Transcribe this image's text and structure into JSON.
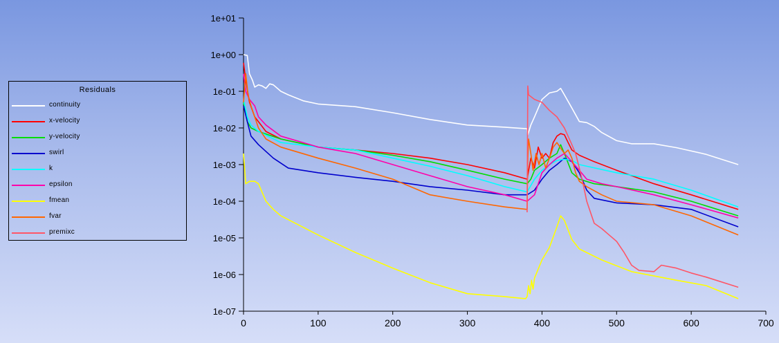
{
  "chart_data": {
    "type": "line",
    "title": "",
    "legend": {
      "title": "Residuals",
      "placement": "left"
    },
    "xlabel": "",
    "ylabel": "",
    "xlim": [
      0,
      700
    ],
    "ylim": [
      1e-07,
      10
    ],
    "yscale": "log",
    "x_ticks": [
      0,
      100,
      200,
      300,
      400,
      500,
      600,
      700
    ],
    "y_ticks": [
      10,
      1,
      0.1,
      0.01,
      0.001,
      0.0001,
      1e-05,
      1e-06,
      1e-07
    ],
    "y_tick_labels": [
      "1e+01",
      "1e+00",
      "1e-01",
      "1e-02",
      "1e-03",
      "1e-04",
      "1e-05",
      "1e-06",
      "1e-07"
    ],
    "series": [
      {
        "name": "continuity",
        "color": "#ffffff",
        "points": [
          [
            0,
            1.0
          ],
          [
            5,
            0.95
          ],
          [
            8,
            0.3
          ],
          [
            12,
            0.2
          ],
          [
            15,
            0.13
          ],
          [
            20,
            0.15
          ],
          [
            25,
            0.14
          ],
          [
            30,
            0.12
          ],
          [
            35,
            0.16
          ],
          [
            40,
            0.15
          ],
          [
            50,
            0.1
          ],
          [
            60,
            0.08
          ],
          [
            80,
            0.055
          ],
          [
            100,
            0.045
          ],
          [
            150,
            0.038
          ],
          [
            200,
            0.026
          ],
          [
            250,
            0.017
          ],
          [
            300,
            0.012
          ],
          [
            350,
            0.0105
          ],
          [
            380,
            0.0095
          ],
          [
            381,
            0.0065
          ],
          [
            385,
            0.012
          ],
          [
            390,
            0.02
          ],
          [
            400,
            0.06
          ],
          [
            410,
            0.09
          ],
          [
            420,
            0.1
          ],
          [
            425,
            0.12
          ],
          [
            430,
            0.08
          ],
          [
            440,
            0.035
          ],
          [
            450,
            0.015
          ],
          [
            460,
            0.014
          ],
          [
            470,
            0.011
          ],
          [
            480,
            0.0075
          ],
          [
            500,
            0.0045
          ],
          [
            520,
            0.0037
          ],
          [
            550,
            0.0037
          ],
          [
            580,
            0.0029
          ],
          [
            620,
            0.0019
          ],
          [
            663,
            0.001
          ]
        ]
      },
      {
        "name": "x-velocity",
        "color": "#ff0000",
        "points": [
          [
            0,
            0.6
          ],
          [
            3,
            0.2
          ],
          [
            8,
            0.05
          ],
          [
            15,
            0.02
          ],
          [
            30,
            0.008
          ],
          [
            50,
            0.005
          ],
          [
            100,
            0.003
          ],
          [
            150,
            0.0025
          ],
          [
            200,
            0.002
          ],
          [
            250,
            0.0015
          ],
          [
            300,
            0.001
          ],
          [
            350,
            0.0006
          ],
          [
            380,
            0.0004
          ],
          [
            385,
            0.0015
          ],
          [
            390,
            0.0008
          ],
          [
            395,
            0.003
          ],
          [
            400,
            0.0015
          ],
          [
            405,
            0.002
          ],
          [
            410,
            0.0015
          ],
          [
            415,
            0.004
          ],
          [
            420,
            0.006
          ],
          [
            425,
            0.007
          ],
          [
            430,
            0.0065
          ],
          [
            435,
            0.004
          ],
          [
            440,
            0.0025
          ],
          [
            450,
            0.0018
          ],
          [
            470,
            0.0012
          ],
          [
            500,
            0.0007
          ],
          [
            550,
            0.0003
          ],
          [
            600,
            0.00015
          ],
          [
            663,
            6e-05
          ]
        ]
      },
      {
        "name": "y-velocity",
        "color": "#00dd00",
        "points": [
          [
            0,
            0.05
          ],
          [
            5,
            0.015
          ],
          [
            10,
            0.01
          ],
          [
            20,
            0.008
          ],
          [
            50,
            0.005
          ],
          [
            100,
            0.003
          ],
          [
            150,
            0.0025
          ],
          [
            200,
            0.0018
          ],
          [
            250,
            0.0012
          ],
          [
            300,
            0.0007
          ],
          [
            350,
            0.0004
          ],
          [
            380,
            0.0003
          ],
          [
            385,
            0.0004
          ],
          [
            390,
            0.0007
          ],
          [
            400,
            0.001
          ],
          [
            410,
            0.0015
          ],
          [
            420,
            0.002
          ],
          [
            425,
            0.0035
          ],
          [
            430,
            0.002
          ],
          [
            440,
            0.0006
          ],
          [
            450,
            0.0004
          ],
          [
            470,
            0.0003
          ],
          [
            500,
            0.00025
          ],
          [
            550,
            0.00018
          ],
          [
            600,
            0.0001
          ],
          [
            663,
            4e-05
          ]
        ]
      },
      {
        "name": "swirl",
        "color": "#0000cc",
        "points": [
          [
            0,
            0.04
          ],
          [
            5,
            0.015
          ],
          [
            10,
            0.006
          ],
          [
            20,
            0.0035
          ],
          [
            40,
            0.0015
          ],
          [
            60,
            0.0008
          ],
          [
            100,
            0.0006
          ],
          [
            150,
            0.00045
          ],
          [
            200,
            0.00035
          ],
          [
            250,
            0.00025
          ],
          [
            300,
            0.0002
          ],
          [
            350,
            0.00015
          ],
          [
            380,
            0.00015
          ],
          [
            390,
            0.0002
          ],
          [
            400,
            0.0004
          ],
          [
            410,
            0.0007
          ],
          [
            420,
            0.001
          ],
          [
            430,
            0.0015
          ],
          [
            440,
            0.0012
          ],
          [
            450,
            0.0006
          ],
          [
            460,
            0.0002
          ],
          [
            470,
            0.00012
          ],
          [
            500,
            9e-05
          ],
          [
            550,
            8e-05
          ],
          [
            600,
            6e-05
          ],
          [
            663,
            2e-05
          ]
        ]
      },
      {
        "name": "k",
        "color": "#00ffff",
        "points": [
          [
            0,
            0.06
          ],
          [
            5,
            0.02
          ],
          [
            10,
            0.012
          ],
          [
            20,
            0.008
          ],
          [
            50,
            0.004
          ],
          [
            100,
            0.003
          ],
          [
            150,
            0.0025
          ],
          [
            200,
            0.0015
          ],
          [
            250,
            0.0009
          ],
          [
            300,
            0.0005
          ],
          [
            350,
            0.00025
          ],
          [
            380,
            0.00018
          ],
          [
            390,
            0.0004
          ],
          [
            400,
            0.0007
          ],
          [
            410,
            0.001
          ],
          [
            420,
            0.0013
          ],
          [
            430,
            0.0014
          ],
          [
            440,
            0.0013
          ],
          [
            450,
            0.001
          ],
          [
            500,
            0.0006
          ],
          [
            550,
            0.0004
          ],
          [
            600,
            0.0002
          ],
          [
            663,
            7e-05
          ]
        ]
      },
      {
        "name": "epsilon",
        "color": "#ff00aa",
        "points": [
          [
            0,
            0.3
          ],
          [
            3,
            0.1
          ],
          [
            8,
            0.06
          ],
          [
            15,
            0.04
          ],
          [
            20,
            0.02
          ],
          [
            30,
            0.012
          ],
          [
            50,
            0.006
          ],
          [
            100,
            0.003
          ],
          [
            150,
            0.002
          ],
          [
            200,
            0.001
          ],
          [
            250,
            0.0005
          ],
          [
            300,
            0.00025
          ],
          [
            350,
            0.00015
          ],
          [
            380,
            0.0001
          ],
          [
            390,
            0.00015
          ],
          [
            400,
            0.0006
          ],
          [
            410,
            0.001
          ],
          [
            420,
            0.0015
          ],
          [
            430,
            0.002
          ],
          [
            440,
            0.0012
          ],
          [
            450,
            0.0007
          ],
          [
            460,
            0.0004
          ],
          [
            480,
            0.0003
          ],
          [
            500,
            0.00025
          ],
          [
            550,
            0.00015
          ],
          [
            600,
            8e-05
          ],
          [
            663,
            3.5e-05
          ]
        ]
      },
      {
        "name": "fmean",
        "color": "#ffff00",
        "points": [
          [
            0,
            0.002
          ],
          [
            3,
            0.0003
          ],
          [
            8,
            0.00035
          ],
          [
            15,
            0.00035
          ],
          [
            20,
            0.0003
          ],
          [
            30,
            0.0001
          ],
          [
            40,
            6e-05
          ],
          [
            50,
            4e-05
          ],
          [
            100,
            1.2e-05
          ],
          [
            150,
            4e-06
          ],
          [
            200,
            1.5e-06
          ],
          [
            250,
            6e-07
          ],
          [
            300,
            3e-07
          ],
          [
            350,
            2.5e-07
          ],
          [
            378,
            2.2e-07
          ],
          [
            380,
            2.5e-07
          ],
          [
            382,
            5e-07
          ],
          [
            384,
            3e-07
          ],
          [
            386,
            7e-07
          ],
          [
            388,
            4e-07
          ],
          [
            390,
            8e-07
          ],
          [
            400,
            2.5e-06
          ],
          [
            410,
            5.5e-06
          ],
          [
            420,
            2e-05
          ],
          [
            425,
            4e-05
          ],
          [
            430,
            3e-05
          ],
          [
            440,
            9e-06
          ],
          [
            450,
            5e-06
          ],
          [
            480,
            2.5e-06
          ],
          [
            520,
            1.2e-06
          ],
          [
            580,
            7e-07
          ],
          [
            620,
            5e-07
          ],
          [
            663,
            2.2e-07
          ]
        ]
      },
      {
        "name": "fvar",
        "color": "#ff6600",
        "points": [
          [
            0,
            0.05
          ],
          [
            3,
            0.3
          ],
          [
            6,
            0.08
          ],
          [
            10,
            0.04
          ],
          [
            20,
            0.01
          ],
          [
            30,
            0.005
          ],
          [
            50,
            0.003
          ],
          [
            100,
            0.0015
          ],
          [
            150,
            0.0008
          ],
          [
            200,
            0.0004
          ],
          [
            250,
            0.00015
          ],
          [
            300,
            0.0001
          ],
          [
            350,
            7e-05
          ],
          [
            380,
            6e-05
          ],
          [
            381,
            0.0015
          ],
          [
            382,
            0.005
          ],
          [
            385,
            0.002
          ],
          [
            388,
            0.0007
          ],
          [
            392,
            0.002
          ],
          [
            396,
            0.001
          ],
          [
            400,
            0.002
          ],
          [
            405,
            0.0008
          ],
          [
            410,
            0.0015
          ],
          [
            415,
            0.003
          ],
          [
            420,
            0.004
          ],
          [
            425,
            0.0028
          ],
          [
            430,
            0.002
          ],
          [
            435,
            0.0025
          ],
          [
            440,
            0.0015
          ],
          [
            445,
            0.0006
          ],
          [
            450,
            0.00035
          ],
          [
            460,
            0.00025
          ],
          [
            480,
            0.00015
          ],
          [
            500,
            0.0001
          ],
          [
            550,
            8e-05
          ],
          [
            600,
            4e-05
          ],
          [
            663,
            1.2e-05
          ]
        ]
      },
      {
        "name": "premixc",
        "color": "#ff5566",
        "points": [
          [
            380,
            5e-05
          ],
          [
            381,
            0.14
          ],
          [
            382,
            0.08
          ],
          [
            390,
            0.06
          ],
          [
            400,
            0.05
          ],
          [
            410,
            0.03
          ],
          [
            420,
            0.02
          ],
          [
            430,
            0.01
          ],
          [
            440,
            0.0035
          ],
          [
            445,
            0.002
          ],
          [
            450,
            0.0008
          ],
          [
            455,
            0.0003
          ],
          [
            460,
            0.0001
          ],
          [
            465,
            5e-05
          ],
          [
            470,
            2.5e-05
          ],
          [
            480,
            1.8e-05
          ],
          [
            490,
            1.2e-05
          ],
          [
            500,
            8e-06
          ],
          [
            510,
            4e-06
          ],
          [
            520,
            1.8e-06
          ],
          [
            530,
            1.3e-06
          ],
          [
            550,
            1.2e-06
          ],
          [
            560,
            1.8e-06
          ],
          [
            580,
            1.5e-06
          ],
          [
            600,
            1.1e-06
          ],
          [
            620,
            8.5e-07
          ],
          [
            663,
            4.5e-07
          ]
        ]
      }
    ]
  }
}
